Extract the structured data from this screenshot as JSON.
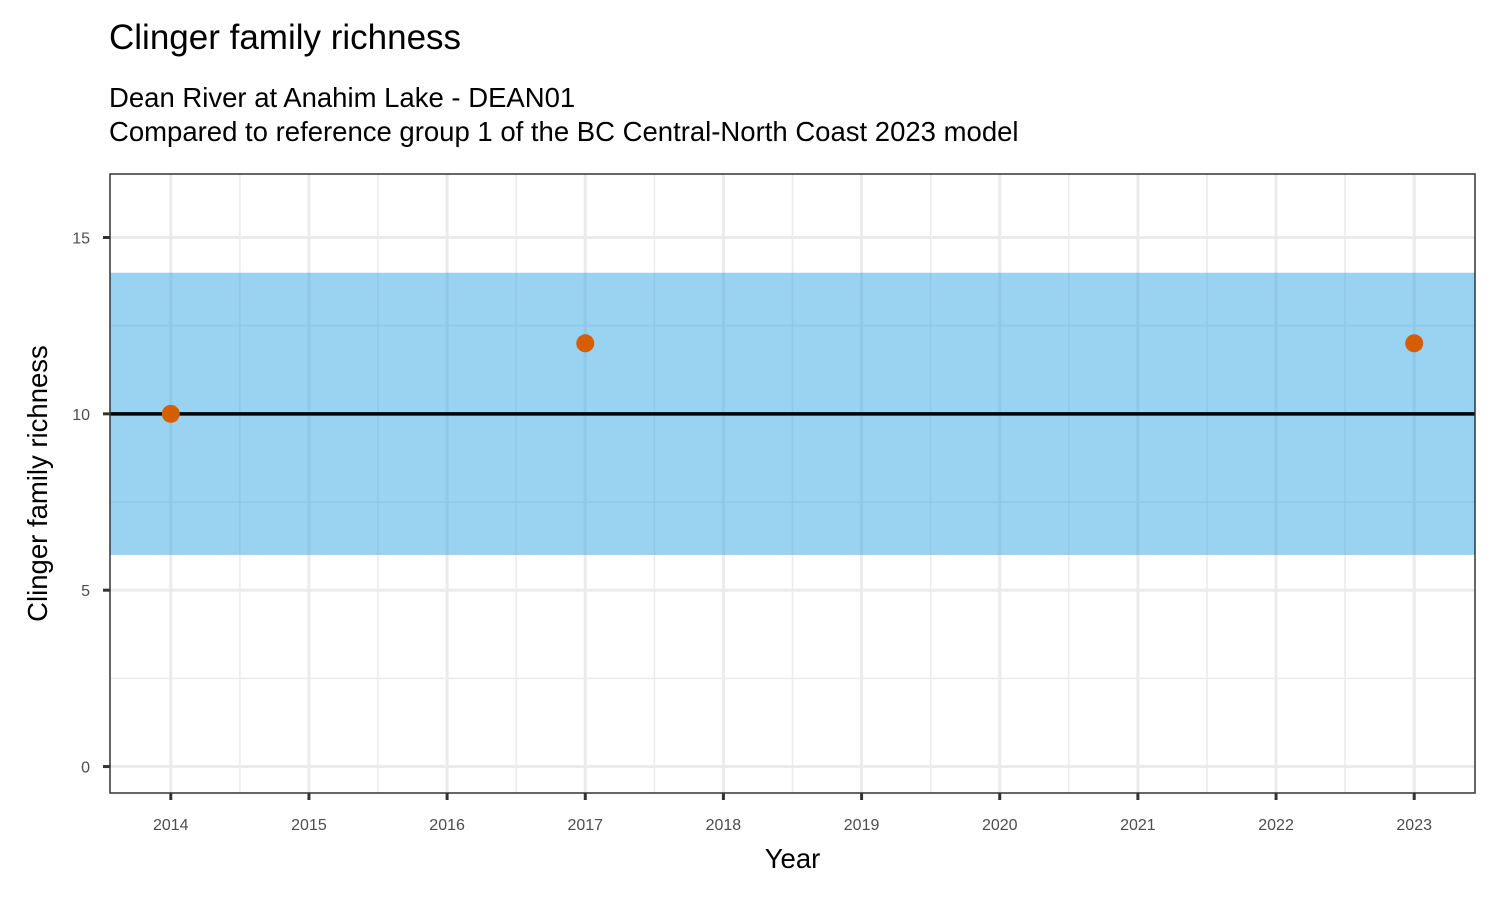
{
  "chart_data": {
    "type": "scatter",
    "title": "Clinger family richness",
    "subtitle_lines": [
      "Dean River at Anahim Lake - DEAN01",
      "Compared to reference group 1 of the BC Central-North Coast 2023 model"
    ],
    "xlabel": "Year",
    "ylabel": "Clinger family richness",
    "x_ticks": [
      2014,
      2015,
      2016,
      2017,
      2018,
      2019,
      2020,
      2021,
      2022,
      2023
    ],
    "x_tick_labels": [
      "2014",
      "2015",
      "2016",
      "2017",
      "2018",
      "2019",
      "2020",
      "2021",
      "2022",
      "2023"
    ],
    "y_ticks": [
      0,
      5,
      10,
      15
    ],
    "y_tick_labels": [
      "0",
      "5",
      "10",
      "15"
    ],
    "xlim": [
      2013.56,
      2023.44
    ],
    "ylim": [
      -0.75,
      16.8
    ],
    "grid": true,
    "series": [
      {
        "name": "Site observations",
        "x": [
          2014,
          2017,
          2023
        ],
        "y": [
          10,
          12,
          12
        ],
        "color": "#D55E00"
      }
    ],
    "reference_line": {
      "y": 10,
      "color": "#000000"
    },
    "reference_band": {
      "ymin": 6,
      "ymax": 14,
      "color": "#56B4E9",
      "opacity": 0.6
    },
    "legend": "none"
  }
}
